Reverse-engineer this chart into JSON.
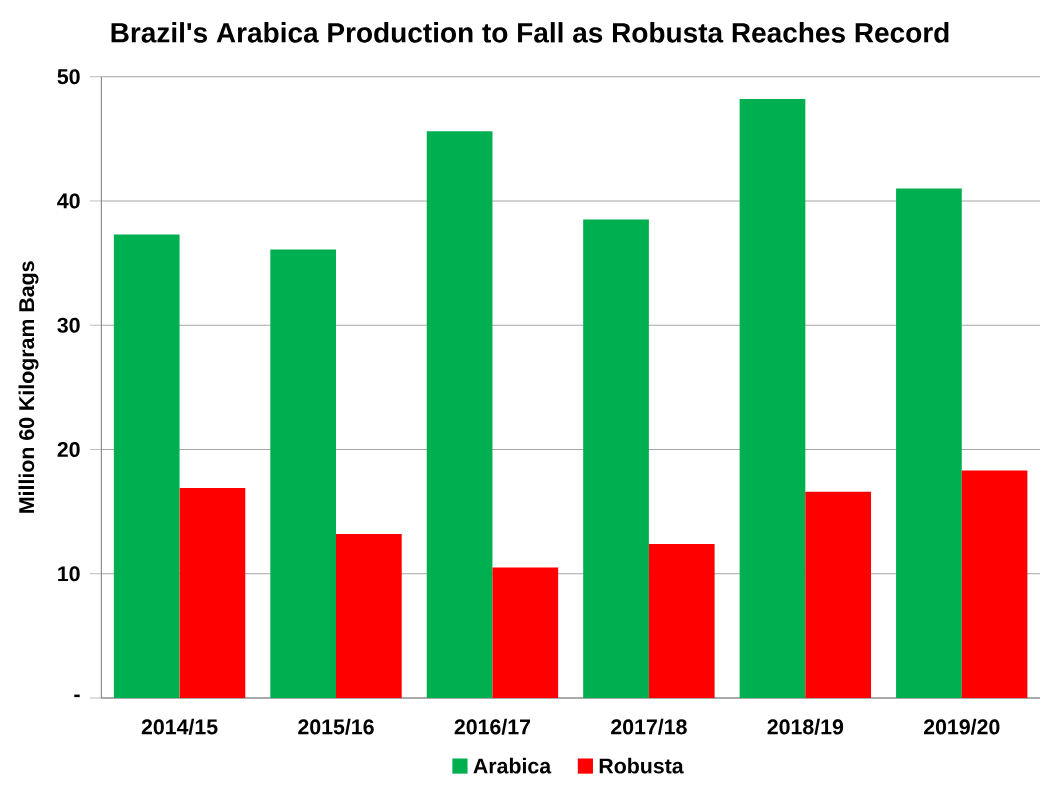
{
  "chart_data": {
    "type": "bar",
    "title": "Brazil's Arabica Production to Fall as Robusta Reaches Record",
    "ylabel": "Million 60 Kilogram Bags",
    "categories": [
      "2014/15",
      "2015/16",
      "2016/17",
      "2017/18",
      "2018/19",
      "2019/20"
    ],
    "series": [
      {
        "name": "Arabica",
        "color": "#00b050",
        "values": [
          37.3,
          36.1,
          45.6,
          38.5,
          48.2,
          41.0
        ]
      },
      {
        "name": "Robusta",
        "color": "#ff0000",
        "values": [
          16.9,
          13.2,
          10.5,
          12.4,
          16.6,
          18.3
        ]
      }
    ],
    "ylim": [
      0,
      50
    ],
    "yticks": [
      {
        "value": 0,
        "label": "-"
      },
      10,
      20,
      30,
      40,
      50
    ],
    "grid": "y",
    "legend": "bottom"
  }
}
